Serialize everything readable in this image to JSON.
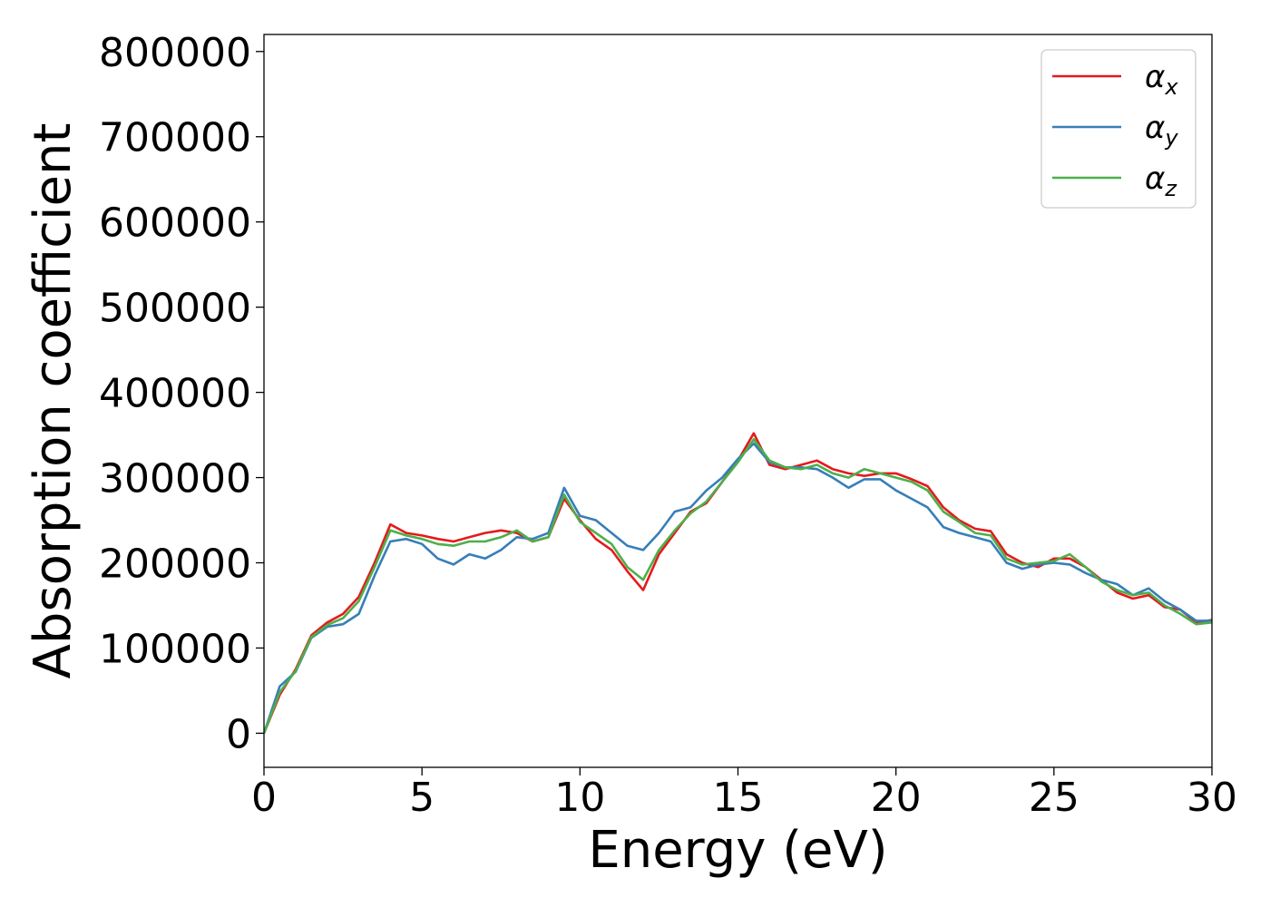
{
  "chart_data": {
    "type": "line",
    "title": "",
    "xlabel": "Energy (eV)",
    "ylabel": "Absorption coefficient",
    "xlim": [
      0,
      30
    ],
    "ylim": [
      -40000,
      820000
    ],
    "xticks": [
      0,
      5,
      10,
      15,
      20,
      25,
      30
    ],
    "yticks": [
      0,
      100000,
      200000,
      300000,
      400000,
      500000,
      600000,
      700000,
      800000
    ],
    "grid": false,
    "legend_position": "top-right",
    "series": [
      {
        "name": "α",
        "subscript": "x",
        "color": "#e41a1c",
        "x": [
          0,
          0.5,
          1,
          1.5,
          2,
          2.5,
          3,
          3.5,
          4,
          4.5,
          5,
          5.5,
          6,
          6.5,
          7,
          7.5,
          8,
          8.5,
          9,
          9.5,
          10,
          10.5,
          11,
          11.5,
          12,
          12.5,
          13,
          13.5,
          14,
          14.5,
          15,
          15.5,
          16,
          16.5,
          17,
          17.5,
          18,
          18.5,
          19,
          19.5,
          20,
          20.5,
          21,
          21.5,
          22,
          22.5,
          23,
          23.5,
          24,
          24.5,
          25,
          25.5,
          26,
          26.5,
          27,
          27.5,
          28,
          28.5,
          29,
          29.5,
          30
        ],
        "y": [
          0,
          45000,
          75000,
          115000,
          130000,
          140000,
          160000,
          200000,
          245000,
          235000,
          232000,
          228000,
          225000,
          230000,
          235000,
          238000,
          235000,
          225000,
          230000,
          275000,
          250000,
          228000,
          215000,
          190000,
          168000,
          210000,
          235000,
          260000,
          270000,
          295000,
          320000,
          352000,
          315000,
          310000,
          315000,
          320000,
          310000,
          305000,
          302000,
          305000,
          305000,
          298000,
          290000,
          265000,
          250000,
          240000,
          237000,
          210000,
          200000,
          195000,
          205000,
          205000,
          195000,
          180000,
          165000,
          158000,
          162000,
          148000,
          145000,
          130000,
          133000
        ]
      },
      {
        "name": "α",
        "subscript": "y",
        "color": "#377eb8",
        "x": [
          0,
          0.5,
          1,
          1.5,
          2,
          2.5,
          3,
          3.5,
          4,
          4.5,
          5,
          5.5,
          6,
          6.5,
          7,
          7.5,
          8,
          8.5,
          9,
          9.5,
          10,
          10.5,
          11,
          11.5,
          12,
          12.5,
          13,
          13.5,
          14,
          14.5,
          15,
          15.5,
          16,
          16.5,
          17,
          17.5,
          18,
          18.5,
          19,
          19.5,
          20,
          20.5,
          21,
          21.5,
          22,
          22.5,
          23,
          23.5,
          24,
          24.5,
          25,
          25.5,
          26,
          26.5,
          27,
          27.5,
          28,
          28.5,
          29,
          29.5,
          30
        ],
        "y": [
          0,
          55000,
          72000,
          112000,
          125000,
          128000,
          140000,
          185000,
          225000,
          228000,
          222000,
          205000,
          198000,
          210000,
          205000,
          215000,
          230000,
          228000,
          235000,
          288000,
          255000,
          250000,
          235000,
          220000,
          215000,
          235000,
          260000,
          265000,
          285000,
          300000,
          322000,
          340000,
          318000,
          312000,
          312000,
          310000,
          300000,
          288000,
          298000,
          298000,
          285000,
          275000,
          265000,
          242000,
          235000,
          230000,
          225000,
          200000,
          193000,
          198000,
          200000,
          198000,
          188000,
          180000,
          175000,
          162000,
          170000,
          155000,
          145000,
          132000,
          132000
        ]
      },
      {
        "name": "α",
        "subscript": "z",
        "color": "#4daf4a",
        "x": [
          0,
          0.5,
          1,
          1.5,
          2,
          2.5,
          3,
          3.5,
          4,
          4.5,
          5,
          5.5,
          6,
          6.5,
          7,
          7.5,
          8,
          8.5,
          9,
          9.5,
          10,
          10.5,
          11,
          11.5,
          12,
          12.5,
          13,
          13.5,
          14,
          14.5,
          15,
          15.5,
          16,
          16.5,
          17,
          17.5,
          18,
          18.5,
          19,
          19.5,
          20,
          20.5,
          21,
          21.5,
          22,
          22.5,
          23,
          23.5,
          24,
          24.5,
          25,
          25.5,
          26,
          26.5,
          27,
          27.5,
          28,
          28.5,
          29,
          29.5,
          30
        ],
        "y": [
          0,
          48000,
          73000,
          113000,
          127000,
          135000,
          155000,
          195000,
          238000,
          232000,
          228000,
          222000,
          220000,
          225000,
          225000,
          230000,
          238000,
          225000,
          230000,
          280000,
          248000,
          235000,
          222000,
          195000,
          180000,
          215000,
          238000,
          258000,
          272000,
          295000,
          318000,
          345000,
          320000,
          312000,
          310000,
          315000,
          305000,
          300000,
          310000,
          305000,
          300000,
          295000,
          285000,
          260000,
          248000,
          235000,
          232000,
          205000,
          198000,
          200000,
          202000,
          210000,
          195000,
          178000,
          168000,
          162000,
          165000,
          150000,
          140000,
          128000,
          130000
        ]
      }
    ]
  }
}
